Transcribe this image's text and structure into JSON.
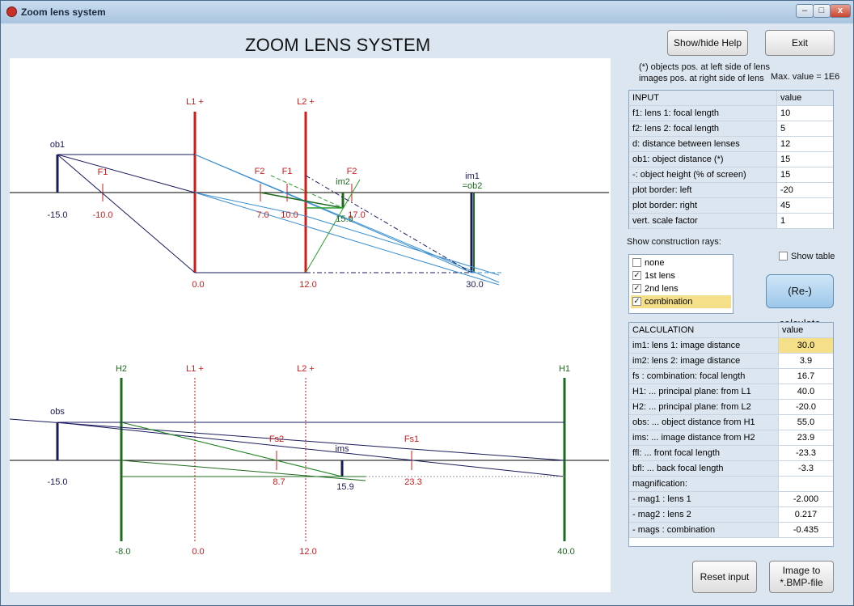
{
  "window": {
    "title": "Zoom lens system",
    "controls": {
      "minimize": "–",
      "maximize": "□",
      "close": "x"
    }
  },
  "app": {
    "heading": "ZOOM LENS SYSTEM",
    "help_button": "Show/hide Help",
    "exit_button": "Exit",
    "note_line1": "(*) objects pos. at left side of lens",
    "note_line2": "images pos. at right side of lens",
    "max_value": "Max. value = 1E6",
    "rays_label": "Show construction rays:",
    "show_table_label": "Show table",
    "recalc_button": "(Re-) calculate",
    "reset_button": "Reset input",
    "image_button_line1": "Image to",
    "image_button_line2": "*.BMP-file"
  },
  "input_table": {
    "header": {
      "label": "INPUT",
      "value": "value"
    },
    "rows": [
      {
        "label": "f1: lens 1: focal length",
        "value": "10"
      },
      {
        "label": "f2: lens 2: focal length",
        "value": "5"
      },
      {
        "label": "d:  distance between lenses",
        "value": "12"
      },
      {
        "label": "ob1: object distance (*)",
        "value": "15"
      },
      {
        "label": "-:  object height (% of screen)",
        "value": "15"
      },
      {
        "label": "plot border: left",
        "value": "-20"
      },
      {
        "label": "plot border: right",
        "value": "45"
      },
      {
        "label": "vert. scale factor",
        "value": "1"
      }
    ]
  },
  "rays": {
    "options": [
      {
        "label": "none",
        "checked": false
      },
      {
        "label": "1st lens",
        "checked": true
      },
      {
        "label": "2nd lens",
        "checked": true
      },
      {
        "label": "combination",
        "checked": true,
        "highlighted": true
      }
    ],
    "show_table_checked": false
  },
  "calc_table": {
    "header": {
      "label": "CALCULATION",
      "value": "value"
    },
    "rows": [
      {
        "label": "im1: lens 1: image distance",
        "value": "30.0",
        "highlight": true
      },
      {
        "label": "im2: lens 2: image distance",
        "value": "3.9"
      },
      {
        "label": "fs : combination: focal length",
        "value": "16.7"
      },
      {
        "label": "H1:  ... principal plane: from L1",
        "value": "40.0"
      },
      {
        "label": "H2:  ... principal plane: from L2",
        "value": "-20.0"
      },
      {
        "label": "obs: ... object distance from H1",
        "value": "55.0"
      },
      {
        "label": "ims: ... image  distance from H2",
        "value": "23.9"
      },
      {
        "label": "ffl: ... front focal length",
        "value": "-23.3"
      },
      {
        "label": "bfl: ... back focal length",
        "value": "-3.3"
      },
      {
        "label": "magnification:",
        "value": ""
      },
      {
        "label": "- mag1 : lens 1",
        "value": "-2.000"
      },
      {
        "label": "- mag2 : lens 2",
        "value": "0.217"
      },
      {
        "label": "- mags : combination",
        "value": "-0.435"
      }
    ]
  },
  "diagram_top": {
    "lens1": "L1 +",
    "lens2": "L2 +",
    "object": "ob1",
    "f1": "F1",
    "f2a": "F2",
    "f1b": "F1",
    "f2b": "F2",
    "im2": "im2",
    "im1": "im1",
    "im1_sub": "=ob2",
    "ticks": [
      "-15.0",
      "-10.0",
      "7.0",
      "10.0",
      "15.9",
      "17.0",
      "0.0",
      "12.0",
      "30.0"
    ]
  },
  "diagram_bottom": {
    "h2": "H2",
    "lens1": "L1 +",
    "lens2": "L2 +",
    "h1": "H1",
    "object": "obs",
    "fs2": "Fs2",
    "ims": "ims",
    "fs1": "Fs1",
    "ticks": [
      "-15.0",
      "8.7",
      "15.9",
      "23.3",
      "-8.0",
      "0.0",
      "12.0",
      "40.0"
    ]
  },
  "colors": {
    "lens_red": "#d11a1a",
    "principal_green": "#1e6b1e",
    "object_navy": "#1a1a5e",
    "ray_blue": "#3a8fd0",
    "ray_green": "#2aa02a",
    "highlight_yellow": "#f5df88"
  }
}
